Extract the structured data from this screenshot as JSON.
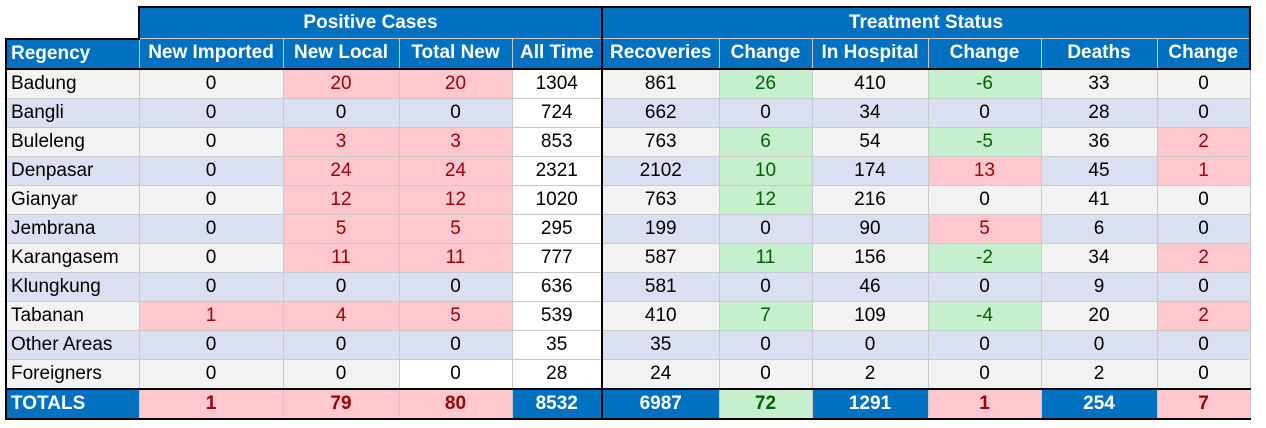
{
  "headers": {
    "group_positive": "Positive Cases",
    "group_treatment": "Treatment Status",
    "columns": [
      "Regency",
      "New Imported",
      "New Local",
      "Total New",
      "All Time",
      "Recoveries",
      "Change",
      "In Hospital",
      "Change",
      "Deaths",
      "Change"
    ]
  },
  "rows": [
    {
      "name": "Badung",
      "cells": [
        "0",
        "20",
        "20",
        "1304",
        "861",
        "26",
        "410",
        "-6",
        "33",
        "0"
      ]
    },
    {
      "name": "Bangli",
      "cells": [
        "0",
        "0",
        "0",
        "724",
        "662",
        "0",
        "34",
        "0",
        "28",
        "0"
      ]
    },
    {
      "name": "Buleleng",
      "cells": [
        "0",
        "3",
        "3",
        "853",
        "763",
        "6",
        "54",
        "-5",
        "36",
        "2"
      ]
    },
    {
      "name": "Denpasar",
      "cells": [
        "0",
        "24",
        "24",
        "2321",
        "2102",
        "10",
        "174",
        "13",
        "45",
        "1"
      ]
    },
    {
      "name": "Gianyar",
      "cells": [
        "0",
        "12",
        "12",
        "1020",
        "763",
        "12",
        "216",
        "0",
        "41",
        "0"
      ]
    },
    {
      "name": "Jembrana",
      "cells": [
        "0",
        "5",
        "5",
        "295",
        "199",
        "0",
        "90",
        "5",
        "6",
        "0"
      ]
    },
    {
      "name": "Karangasem",
      "cells": [
        "0",
        "11",
        "11",
        "777",
        "587",
        "11",
        "156",
        "-2",
        "34",
        "2"
      ]
    },
    {
      "name": "Klungkung",
      "cells": [
        "0",
        "0",
        "0",
        "636",
        "581",
        "0",
        "46",
        "0",
        "9",
        "0"
      ]
    },
    {
      "name": "Tabanan",
      "cells": [
        "1",
        "4",
        "5",
        "539",
        "410",
        "7",
        "109",
        "-4",
        "20",
        "2"
      ]
    },
    {
      "name": "Other Areas",
      "cells": [
        "0",
        "0",
        "0",
        "35",
        "35",
        "0",
        "0",
        "0",
        "0",
        "0"
      ]
    },
    {
      "name": "Foreigners",
      "cells": [
        "0",
        "0",
        "0",
        "28",
        "24",
        "0",
        "2",
        "0",
        "2",
        "0"
      ]
    }
  ],
  "totals": {
    "name": "TOTALS",
    "cells": [
      "1",
      "79",
      "80",
      "8532",
      "6987",
      "72",
      "1291",
      "1",
      "254",
      "7"
    ]
  },
  "colors": {
    "header": "#0070c0",
    "red_fill": "#ffc7ce",
    "red_text": "#9c0006",
    "green_fill": "#c6efce",
    "green_text": "#006100",
    "row_odd": "#f2f2f2",
    "row_even": "#dae0f1"
  }
}
